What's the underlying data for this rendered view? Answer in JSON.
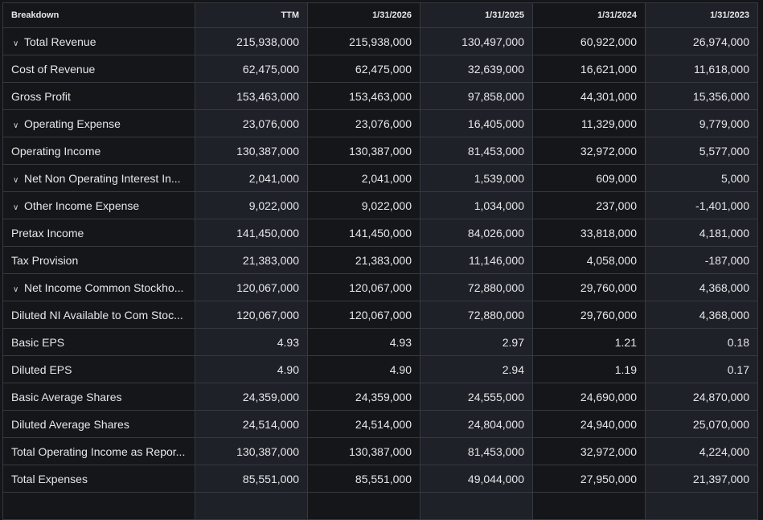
{
  "table": {
    "headers": [
      "Breakdown",
      "TTM",
      "1/31/2026",
      "1/31/2025",
      "1/31/2024",
      "1/31/2023"
    ],
    "rows": [
      {
        "label": "Total Revenue",
        "expandable": true,
        "values": [
          "215,938,000",
          "215,938,000",
          "130,497,000",
          "60,922,000",
          "26,974,000"
        ]
      },
      {
        "label": "Cost of Revenue",
        "expandable": false,
        "values": [
          "62,475,000",
          "62,475,000",
          "32,639,000",
          "16,621,000",
          "11,618,000"
        ]
      },
      {
        "label": "Gross Profit",
        "expandable": false,
        "values": [
          "153,463,000",
          "153,463,000",
          "97,858,000",
          "44,301,000",
          "15,356,000"
        ]
      },
      {
        "label": "Operating Expense",
        "expandable": true,
        "values": [
          "23,076,000",
          "23,076,000",
          "16,405,000",
          "11,329,000",
          "9,779,000"
        ]
      },
      {
        "label": "Operating Income",
        "expandable": false,
        "values": [
          "130,387,000",
          "130,387,000",
          "81,453,000",
          "32,972,000",
          "5,577,000"
        ]
      },
      {
        "label": "Net Non Operating Interest In...",
        "expandable": true,
        "values": [
          "2,041,000",
          "2,041,000",
          "1,539,000",
          "609,000",
          "5,000"
        ]
      },
      {
        "label": "Other Income Expense",
        "expandable": true,
        "values": [
          "9,022,000",
          "9,022,000",
          "1,034,000",
          "237,000",
          "-1,401,000"
        ]
      },
      {
        "label": "Pretax Income",
        "expandable": false,
        "values": [
          "141,450,000",
          "141,450,000",
          "84,026,000",
          "33,818,000",
          "4,181,000"
        ]
      },
      {
        "label": "Tax Provision",
        "expandable": false,
        "values": [
          "21,383,000",
          "21,383,000",
          "11,146,000",
          "4,058,000",
          "-187,000"
        ]
      },
      {
        "label": "Net Income Common Stockho...",
        "expandable": true,
        "values": [
          "120,067,000",
          "120,067,000",
          "72,880,000",
          "29,760,000",
          "4,368,000"
        ]
      },
      {
        "label": "Diluted NI Available to Com Stoc...",
        "expandable": false,
        "values": [
          "120,067,000",
          "120,067,000",
          "72,880,000",
          "29,760,000",
          "4,368,000"
        ]
      },
      {
        "label": "Basic EPS",
        "expandable": false,
        "values": [
          "4.93",
          "4.93",
          "2.97",
          "1.21",
          "0.18"
        ]
      },
      {
        "label": "Diluted EPS",
        "expandable": false,
        "values": [
          "4.90",
          "4.90",
          "2.94",
          "1.19",
          "0.17"
        ]
      },
      {
        "label": "Basic Average Shares",
        "expandable": false,
        "values": [
          "24,359,000",
          "24,359,000",
          "24,555,000",
          "24,690,000",
          "24,870,000"
        ]
      },
      {
        "label": "Diluted Average Shares",
        "expandable": false,
        "values": [
          "24,514,000",
          "24,514,000",
          "24,804,000",
          "24,940,000",
          "25,070,000"
        ]
      },
      {
        "label": "Total Operating Income as Repor...",
        "expandable": false,
        "values": [
          "130,387,000",
          "130,387,000",
          "81,453,000",
          "32,972,000",
          "4,224,000"
        ]
      },
      {
        "label": "Total Expenses",
        "expandable": false,
        "values": [
          "85,551,000",
          "85,551,000",
          "49,044,000",
          "27,950,000",
          "21,397,000"
        ]
      },
      {
        "label": "",
        "expandable": false,
        "values": [
          "",
          "",
          "",
          "",
          ""
        ]
      }
    ]
  }
}
